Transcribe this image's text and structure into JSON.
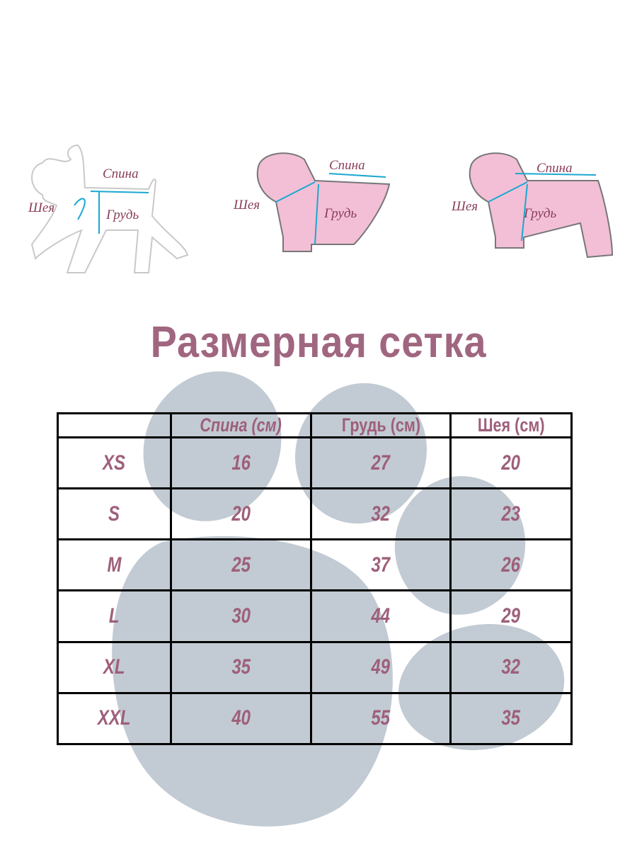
{
  "illustrations": [
    {
      "name": "dog",
      "labels": {
        "back": "Спина",
        "neck": "Шея",
        "chest": "Грудь"
      }
    },
    {
      "name": "hoodie",
      "labels": {
        "back": "Спина",
        "neck": "Шея",
        "chest": "Грудь"
      }
    },
    {
      "name": "jumpsuit",
      "labels": {
        "back": "Спина",
        "neck": "Шея",
        "chest": "Грудь"
      }
    }
  ],
  "title": "Размерная сетка",
  "colors": {
    "text": "#9e5f7a",
    "paw": "#c2cbd3",
    "garment": "#f2bfd6",
    "measure": "#1ba8d0"
  },
  "table": {
    "headers": [
      "",
      "Спина (см)",
      "Грудь (см)",
      "Шея (см)"
    ],
    "rows": [
      [
        "XS",
        "16",
        "27",
        "20"
      ],
      [
        "S",
        "20",
        "32",
        "23"
      ],
      [
        "M",
        "25",
        "37",
        "26"
      ],
      [
        "L",
        "30",
        "44",
        "29"
      ],
      [
        "XL",
        "35",
        "49",
        "32"
      ],
      [
        "XXL",
        "40",
        "55",
        "35"
      ]
    ]
  }
}
